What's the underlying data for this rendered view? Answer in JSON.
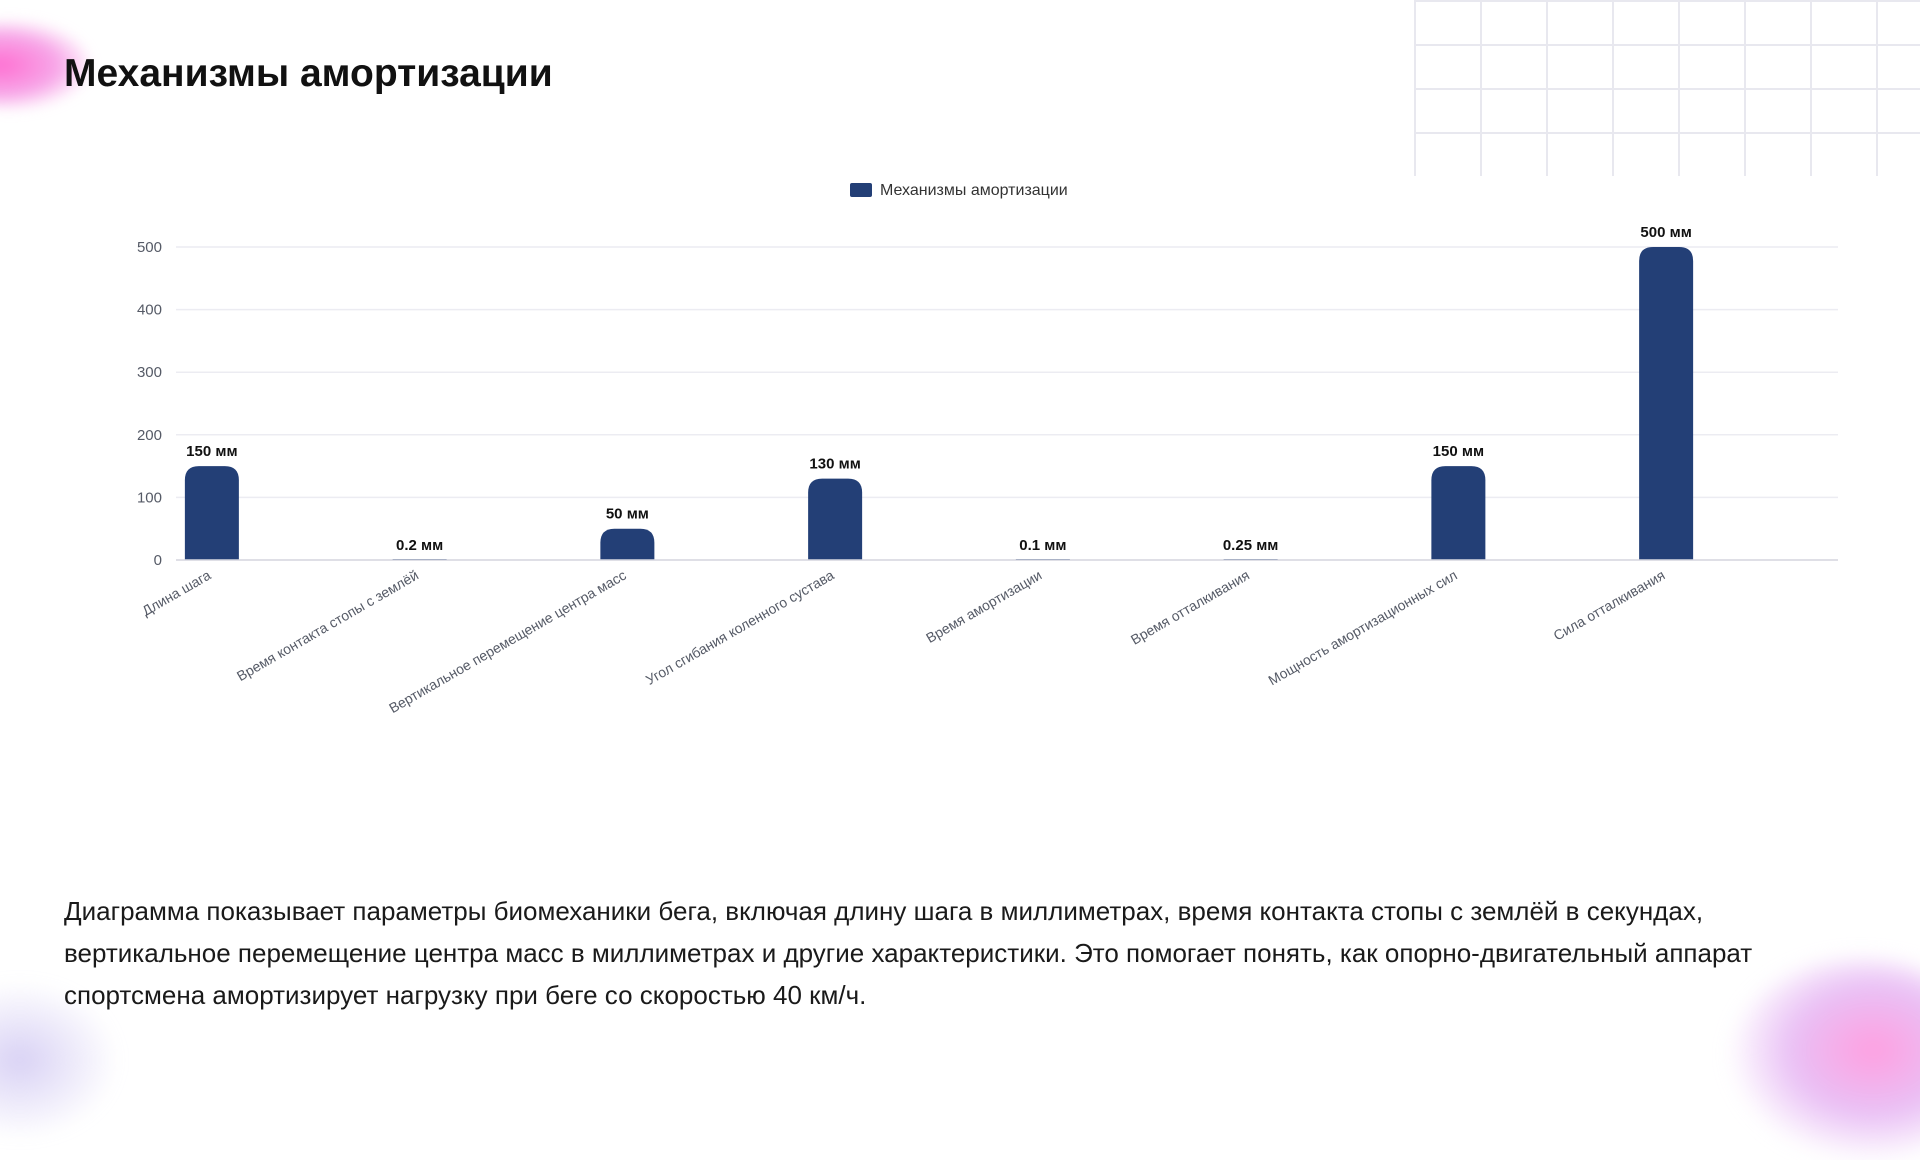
{
  "page": {
    "title": "Механизмы амортизации",
    "description": "Диаграмма показывает параметры биомеханики бега, включая длину шага в миллиметрах, время контакта стопы с землёй в секундах, вертикальное перемещение центра масс в миллиметрах и другие характеристики. Это помогает понять, как опорно-двигательный аппарат спортсмена амортизирует нагрузку при беге со скоростью 40 км/ч."
  },
  "colors": {
    "bar": "#233f76",
    "grid": "#ececf2",
    "axis_text": "#555a66",
    "label_text": "#111111"
  },
  "chart_data": {
    "type": "bar",
    "title": "",
    "legend": {
      "position": "top",
      "entries": [
        "Механизмы амортизации"
      ]
    },
    "grid": true,
    "xlabel": "",
    "ylabel": "",
    "ylim": [
      0,
      500
    ],
    "yticks": [
      "0",
      "100",
      "200",
      "300",
      "400",
      "500"
    ],
    "categories": [
      "Длина шага",
      "Время контакта стопы с землёй",
      "Вертикальное перемещение центра масс",
      "Угол сгибания коленного сустава",
      "Время амортизации",
      "Время отталкивания",
      "Мощность амортизационных сил",
      "Сила отталкивания"
    ],
    "series": [
      {
        "name": "Механизмы амортизации",
        "values": [
          150,
          0.2,
          50,
          130,
          0.1,
          0.25,
          150,
          500
        ],
        "data_labels": [
          "150 мм",
          "0.2 мм",
          "50 мм",
          "130 мм",
          "0.1 мм",
          "0.25 мм",
          "150 мм",
          "500 мм"
        ]
      }
    ]
  }
}
